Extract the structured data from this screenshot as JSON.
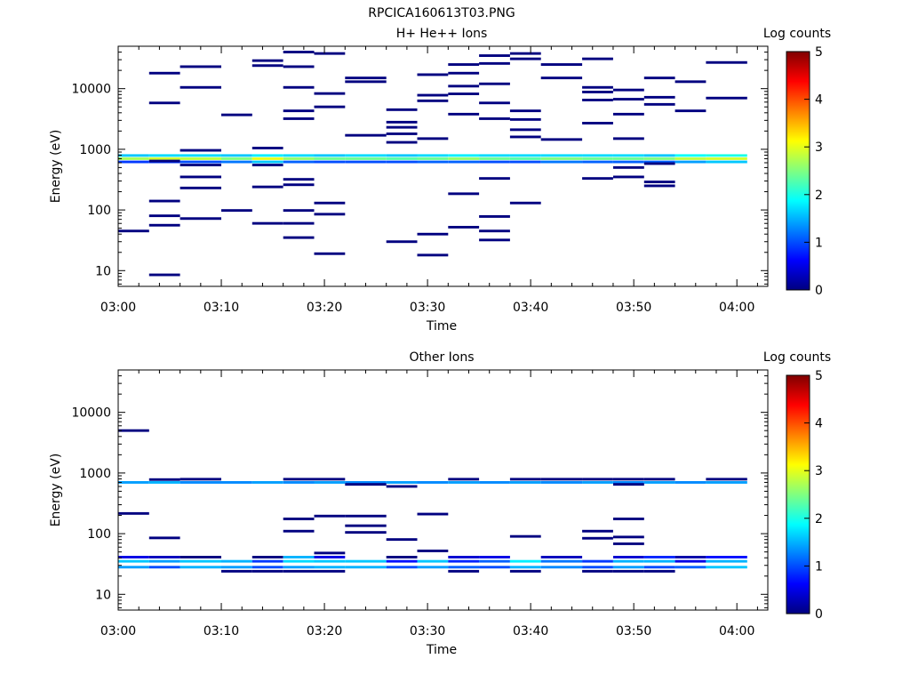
{
  "figure": {
    "title": "RPCICA160613T03.PNG"
  },
  "colorscale": {
    "stops": [
      "#000080",
      "#0000ff",
      "#0080ff",
      "#00ffff",
      "#80ff80",
      "#ffff00",
      "#ff8000",
      "#ff0000",
      "#800000"
    ],
    "range": [
      0,
      5
    ]
  },
  "chart_data": [
    {
      "type": "heatmap",
      "title": "H+ He++ Ions",
      "xlabel": "Time",
      "ylabel": "Energy (eV)",
      "yscale": "log",
      "ylim": [
        5.5,
        50000
      ],
      "xlim": [
        "03:00",
        "04:03"
      ],
      "x_ticks": [
        "03:00",
        "03:10",
        "03:20",
        "03:30",
        "03:40",
        "03:50",
        "04:00"
      ],
      "y_ticks": [
        "10",
        "100",
        "1000",
        "10000"
      ],
      "colorbar": {
        "label": "Log counts",
        "ticks": [
          "0",
          "1",
          "2",
          "3",
          "4",
          "5"
        ],
        "range": [
          0,
          5
        ]
      },
      "time_bins": [
        "03:00",
        "03:03",
        "03:06",
        "03:10",
        "03:13",
        "03:16",
        "03:19",
        "03:22",
        "03:26",
        "03:29",
        "03:32",
        "03:35",
        "03:38",
        "03:41",
        "03:45",
        "03:48",
        "03:51",
        "03:54",
        "03:57",
        "04:01"
      ],
      "cells": [
        [
          0,
          620,
          0.9
        ],
        [
          1,
          620,
          0.9
        ],
        [
          2,
          620,
          1.0
        ],
        [
          3,
          620,
          1.2
        ],
        [
          4,
          620,
          1.6
        ],
        [
          5,
          620,
          1.1
        ],
        [
          6,
          620,
          1.0
        ],
        [
          7,
          620,
          1.0
        ],
        [
          8,
          620,
          1.0
        ],
        [
          9,
          620,
          1.1
        ],
        [
          10,
          620,
          1.1
        ],
        [
          11,
          620,
          1.0
        ],
        [
          12,
          620,
          1.0
        ],
        [
          13,
          620,
          1.2
        ],
        [
          14,
          620,
          1.1
        ],
        [
          15,
          620,
          1.1
        ],
        [
          16,
          620,
          1.1
        ],
        [
          17,
          620,
          1.4
        ],
        [
          18,
          620,
          1.6
        ],
        [
          0,
          700,
          2.7
        ],
        [
          1,
          700,
          2.9
        ],
        [
          2,
          700,
          2.8
        ],
        [
          3,
          700,
          2.5
        ],
        [
          4,
          700,
          3.0
        ],
        [
          5,
          700,
          2.6
        ],
        [
          6,
          700,
          2.4
        ],
        [
          7,
          700,
          2.4
        ],
        [
          8,
          700,
          2.3
        ],
        [
          9,
          700,
          2.4
        ],
        [
          10,
          700,
          2.6
        ],
        [
          11,
          700,
          2.4
        ],
        [
          12,
          700,
          2.3
        ],
        [
          13,
          700,
          2.5
        ],
        [
          14,
          700,
          2.4
        ],
        [
          15,
          700,
          2.4
        ],
        [
          16,
          700,
          2.5
        ],
        [
          17,
          700,
          2.8
        ],
        [
          18,
          700,
          2.9
        ],
        [
          0,
          790,
          1.6
        ],
        [
          1,
          790,
          1.7
        ],
        [
          2,
          790,
          1.7
        ],
        [
          3,
          790,
          1.6
        ],
        [
          4,
          790,
          1.8
        ],
        [
          5,
          790,
          1.7
        ],
        [
          6,
          790,
          1.6
        ],
        [
          7,
          790,
          1.7
        ],
        [
          8,
          790,
          1.6
        ],
        [
          9,
          790,
          1.7
        ],
        [
          10,
          790,
          1.8
        ],
        [
          11,
          790,
          1.7
        ],
        [
          12,
          790,
          1.7
        ],
        [
          13,
          790,
          1.7
        ],
        [
          14,
          790,
          1.7
        ],
        [
          15,
          790,
          1.7
        ],
        [
          16,
          790,
          1.6
        ],
        [
          17,
          790,
          1.9
        ],
        [
          18,
          790,
          2.0
        ],
        [
          0,
          45,
          0
        ],
        [
          1,
          8.5,
          0
        ],
        [
          1,
          56,
          0
        ],
        [
          1,
          80,
          0
        ],
        [
          1,
          140,
          0
        ],
        [
          1,
          640,
          0
        ],
        [
          1,
          5800,
          0
        ],
        [
          1,
          18000,
          0
        ],
        [
          2,
          72,
          0
        ],
        [
          2,
          230,
          0
        ],
        [
          2,
          350,
          0
        ],
        [
          2,
          550,
          0
        ],
        [
          2,
          960,
          0
        ],
        [
          2,
          10500,
          0
        ],
        [
          2,
          23000,
          0
        ],
        [
          3,
          98,
          0
        ],
        [
          3,
          3700,
          0
        ],
        [
          4,
          60,
          0
        ],
        [
          4,
          240,
          0
        ],
        [
          4,
          550,
          0
        ],
        [
          4,
          1050,
          0
        ],
        [
          4,
          24000,
          0
        ],
        [
          4,
          29000,
          0
        ],
        [
          5,
          35,
          0
        ],
        [
          5,
          60,
          0
        ],
        [
          5,
          98,
          0
        ],
        [
          5,
          260,
          0
        ],
        [
          5,
          320,
          0
        ],
        [
          5,
          3200,
          0
        ],
        [
          5,
          4300,
          0
        ],
        [
          5,
          10500,
          0
        ],
        [
          5,
          23000,
          0
        ],
        [
          5,
          40000,
          0
        ],
        [
          6,
          19,
          0
        ],
        [
          6,
          85,
          0
        ],
        [
          6,
          130,
          0
        ],
        [
          6,
          5000,
          0
        ],
        [
          6,
          8300,
          0
        ],
        [
          6,
          38000,
          0
        ],
        [
          7,
          1700,
          0
        ],
        [
          7,
          13000,
          0
        ],
        [
          7,
          15000,
          0
        ],
        [
          8,
          30,
          0
        ],
        [
          8,
          1300,
          0
        ],
        [
          8,
          1800,
          0
        ],
        [
          8,
          2300,
          0
        ],
        [
          8,
          2800,
          0
        ],
        [
          8,
          4500,
          0
        ],
        [
          9,
          18,
          0
        ],
        [
          9,
          40,
          0
        ],
        [
          9,
          1500,
          0
        ],
        [
          9,
          6300,
          0
        ],
        [
          9,
          7800,
          0
        ],
        [
          9,
          17000,
          0
        ],
        [
          10,
          52,
          0
        ],
        [
          10,
          185,
          0
        ],
        [
          10,
          3800,
          0
        ],
        [
          10,
          8200,
          0
        ],
        [
          10,
          11000,
          0
        ],
        [
          10,
          18000,
          0
        ],
        [
          10,
          25000,
          0
        ],
        [
          11,
          32,
          0
        ],
        [
          11,
          45,
          0
        ],
        [
          11,
          78,
          0
        ],
        [
          11,
          330,
          0
        ],
        [
          11,
          3200,
          0
        ],
        [
          11,
          5800,
          0
        ],
        [
          11,
          12000,
          0
        ],
        [
          11,
          26000,
          0
        ],
        [
          11,
          35000,
          0
        ],
        [
          12,
          130,
          0
        ],
        [
          12,
          1600,
          0
        ],
        [
          12,
          2100,
          0
        ],
        [
          12,
          3100,
          0
        ],
        [
          12,
          4300,
          0
        ],
        [
          12,
          31000,
          0
        ],
        [
          12,
          38000,
          0
        ],
        [
          13,
          1450,
          0
        ],
        [
          13,
          15000,
          0
        ],
        [
          13,
          25000,
          0
        ],
        [
          14,
          330,
          0
        ],
        [
          14,
          2700,
          0
        ],
        [
          14,
          6500,
          0
        ],
        [
          14,
          8800,
          0
        ],
        [
          14,
          10500,
          0
        ],
        [
          14,
          31000,
          0
        ],
        [
          15,
          350,
          0
        ],
        [
          15,
          500,
          0
        ],
        [
          15,
          1500,
          0
        ],
        [
          15,
          3800,
          0
        ],
        [
          15,
          6700,
          0
        ],
        [
          15,
          9500,
          0
        ],
        [
          16,
          250,
          0
        ],
        [
          16,
          290,
          0
        ],
        [
          16,
          580,
          0
        ],
        [
          16,
          5500,
          0
        ],
        [
          16,
          7200,
          0
        ],
        [
          16,
          15000,
          0
        ],
        [
          17,
          4300,
          0
        ],
        [
          17,
          13000,
          0
        ],
        [
          18,
          7000,
          0
        ],
        [
          18,
          27000,
          0
        ]
      ]
    },
    {
      "type": "heatmap",
      "title": "Other Ions",
      "xlabel": "Time",
      "ylabel": "Energy (eV)",
      "yscale": "log",
      "ylim": [
        5.5,
        50000
      ],
      "xlim": [
        "03:00",
        "04:03"
      ],
      "x_ticks": [
        "03:00",
        "03:10",
        "03:20",
        "03:30",
        "03:40",
        "03:50",
        "04:00"
      ],
      "y_ticks": [
        "10",
        "100",
        "1000",
        "10000"
      ],
      "colorbar": {
        "label": "Log counts",
        "ticks": [
          "0",
          "1",
          "2",
          "3",
          "4",
          "5"
        ],
        "range": [
          0,
          5
        ]
      },
      "cells": [
        [
          0,
          28,
          1.4
        ],
        [
          1,
          28,
          1.0
        ],
        [
          2,
          28,
          1.5
        ],
        [
          3,
          28,
          1.4
        ],
        [
          4,
          28,
          1.0
        ],
        [
          5,
          28,
          1.4
        ],
        [
          6,
          28,
          1.5
        ],
        [
          7,
          28,
          1.5
        ],
        [
          8,
          28,
          1.0
        ],
        [
          9,
          28,
          1.4
        ],
        [
          10,
          28,
          1.1
        ],
        [
          11,
          28,
          1.0
        ],
        [
          12,
          28,
          1.5
        ],
        [
          13,
          28,
          1.3
        ],
        [
          14,
          28,
          1.0
        ],
        [
          15,
          28,
          1.4
        ],
        [
          16,
          28,
          1.0
        ],
        [
          17,
          28,
          1.1
        ],
        [
          18,
          28,
          1.6
        ],
        [
          0,
          35,
          1.6
        ],
        [
          1,
          35,
          1.4
        ],
        [
          2,
          35,
          1.6
        ],
        [
          3,
          35,
          1.5
        ],
        [
          4,
          35,
          0.9
        ],
        [
          5,
          35,
          1.7
        ],
        [
          6,
          35,
          1.6
        ],
        [
          7,
          35,
          1.6
        ],
        [
          8,
          35,
          0.7
        ],
        [
          9,
          35,
          1.6
        ],
        [
          10,
          35,
          0.8
        ],
        [
          11,
          35,
          1.1
        ],
        [
          12,
          35,
          1.8
        ],
        [
          13,
          35,
          1.2
        ],
        [
          14,
          35,
          0.9
        ],
        [
          15,
          35,
          1.5
        ],
        [
          16,
          35,
          1.5
        ],
        [
          17,
          35,
          0.5
        ],
        [
          18,
          35,
          1.5
        ],
        [
          0,
          41,
          0.5
        ],
        [
          1,
          41,
          0.3
        ],
        [
          2,
          41,
          0
        ],
        [
          4,
          41,
          0
        ],
        [
          5,
          41,
          1.5
        ],
        [
          6,
          41,
          0.5
        ],
        [
          8,
          41,
          0
        ],
        [
          10,
          41,
          0.4
        ],
        [
          11,
          41,
          0.5
        ],
        [
          13,
          41,
          0.3
        ],
        [
          15,
          41,
          0.4
        ],
        [
          16,
          41,
          0.8
        ],
        [
          17,
          41,
          0.2
        ],
        [
          18,
          41,
          0.7
        ],
        [
          3,
          24,
          0
        ],
        [
          4,
          24,
          0
        ],
        [
          5,
          24,
          0
        ],
        [
          6,
          24,
          0
        ],
        [
          10,
          24,
          0
        ],
        [
          12,
          24,
          0
        ],
        [
          14,
          24,
          0
        ],
        [
          15,
          24,
          0
        ],
        [
          16,
          24,
          0
        ],
        [
          0,
          700,
          1.4
        ],
        [
          1,
          700,
          1.5
        ],
        [
          2,
          700,
          1.3
        ],
        [
          3,
          700,
          1.3
        ],
        [
          4,
          700,
          1.4
        ],
        [
          5,
          700,
          1.3
        ],
        [
          6,
          700,
          1.4
        ],
        [
          7,
          700,
          1.3
        ],
        [
          8,
          700,
          1.4
        ],
        [
          9,
          700,
          1.3
        ],
        [
          10,
          700,
          1.4
        ],
        [
          11,
          700,
          1.3
        ],
        [
          12,
          700,
          1.4
        ],
        [
          13,
          700,
          1.3
        ],
        [
          14,
          700,
          1.4
        ],
        [
          15,
          700,
          1.3
        ],
        [
          16,
          700,
          1.4
        ],
        [
          17,
          700,
          1.3
        ],
        [
          18,
          700,
          1.4
        ],
        [
          0,
          5000,
          0
        ],
        [
          0,
          215,
          0
        ],
        [
          1,
          85,
          0
        ],
        [
          1,
          780,
          0
        ],
        [
          2,
          790,
          0
        ],
        [
          5,
          110,
          0
        ],
        [
          5,
          175,
          0
        ],
        [
          5,
          790,
          0
        ],
        [
          6,
          48,
          0
        ],
        [
          6,
          195,
          0
        ],
        [
          6,
          790,
          0
        ],
        [
          7,
          105,
          0
        ],
        [
          7,
          135,
          0
        ],
        [
          7,
          195,
          0
        ],
        [
          7,
          650,
          0
        ],
        [
          8,
          80,
          0
        ],
        [
          8,
          600,
          0
        ],
        [
          9,
          52,
          0
        ],
        [
          9,
          210,
          0
        ],
        [
          10,
          790,
          0
        ],
        [
          12,
          90,
          0
        ],
        [
          12,
          790,
          0
        ],
        [
          13,
          790,
          0
        ],
        [
          14,
          84,
          0
        ],
        [
          14,
          110,
          0
        ],
        [
          14,
          790,
          0
        ],
        [
          15,
          68,
          0
        ],
        [
          15,
          88,
          0
        ],
        [
          15,
          175,
          0
        ],
        [
          15,
          650,
          0
        ],
        [
          15,
          790,
          0
        ],
        [
          16,
          790,
          0
        ],
        [
          18,
          790,
          0
        ]
      ]
    }
  ]
}
